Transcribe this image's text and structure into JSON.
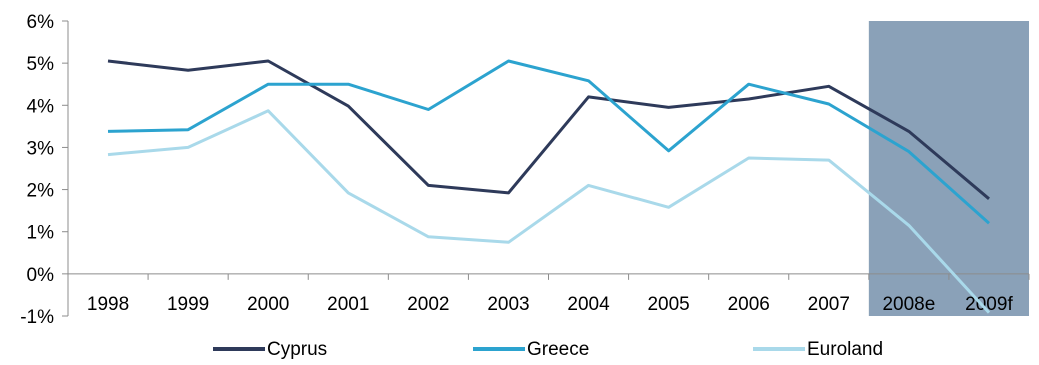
{
  "chart_data": {
    "type": "line",
    "categories": [
      "1998",
      "1999",
      "2000",
      "2001",
      "2002",
      "2003",
      "2004",
      "2005",
      "2006",
      "2007",
      "2008e",
      "2009f"
    ],
    "ylim": [
      -1,
      6
    ],
    "yticks": [
      -1,
      0,
      1,
      2,
      3,
      4,
      5,
      6
    ],
    "ytick_labels": [
      "-1%",
      "0%",
      "1%",
      "2%",
      "3%",
      "4%",
      "5%",
      "6%"
    ],
    "grid": false,
    "legend_position": "bottom",
    "highlight": {
      "from_category": "2008e",
      "to_category": "2009f",
      "color": "#8aa1b8"
    },
    "series": [
      {
        "name": "Cyprus",
        "color": "#2e3a5a",
        "values": [
          5.05,
          4.83,
          5.05,
          3.98,
          2.1,
          1.92,
          4.2,
          3.95,
          4.15,
          4.45,
          3.38,
          1.78
        ]
      },
      {
        "name": "Greece",
        "color": "#2ca3cf",
        "values": [
          3.38,
          3.42,
          4.5,
          4.5,
          3.9,
          5.05,
          4.58,
          2.92,
          4.5,
          4.03,
          2.9,
          1.2
        ]
      },
      {
        "name": "Euroland",
        "color": "#a9d9ea",
        "values": [
          2.83,
          3.0,
          3.87,
          1.92,
          0.88,
          0.75,
          2.1,
          1.58,
          2.75,
          2.7,
          1.15,
          -0.92
        ]
      }
    ]
  }
}
